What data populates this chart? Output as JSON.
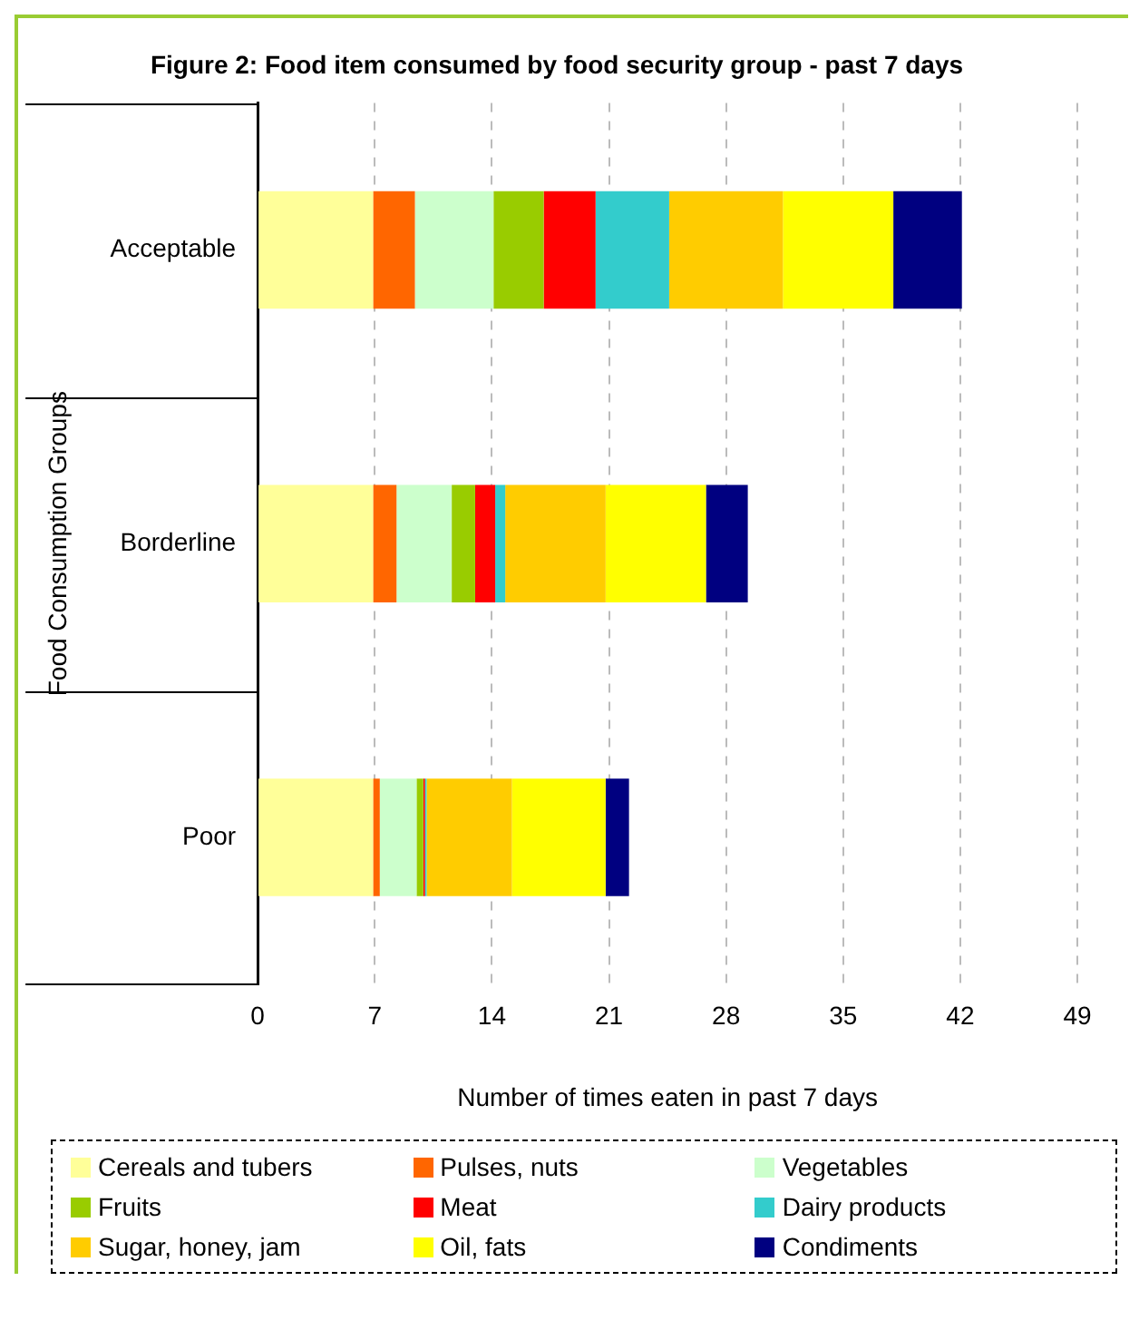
{
  "chart_data": {
    "type": "bar",
    "orientation": "horizontal",
    "stacked": true,
    "title": "Figure 2: Food item consumed by food security group - past 7 days",
    "xlabel": "Number of times eaten in past 7 days",
    "ylabel": "Food Consumption Groups",
    "categories": [
      "Acceptable",
      "Borderline",
      "Poor"
    ],
    "xlim": [
      0,
      49
    ],
    "xticks": [
      0,
      7,
      14,
      21,
      28,
      35,
      42,
      49
    ],
    "grid": "x",
    "legend": "bottom",
    "series": [
      {
        "name": "Cereals and tubers",
        "color": "#ffff99",
        "values": [
          6.9,
          6.9,
          6.9
        ]
      },
      {
        "name": "Pulses, nuts",
        "color": "#ff6600",
        "values": [
          2.5,
          1.4,
          0.4
        ]
      },
      {
        "name": "Vegetables",
        "color": "#ccffcc",
        "values": [
          4.7,
          3.3,
          2.2
        ]
      },
      {
        "name": "Fruits",
        "color": "#99cc00",
        "values": [
          3.0,
          1.4,
          0.4
        ]
      },
      {
        "name": "Meat",
        "color": "#ff0000",
        "values": [
          3.1,
          1.2,
          0.1
        ]
      },
      {
        "name": "Dairy products",
        "color": "#33cccc",
        "values": [
          4.4,
          0.6,
          0.1
        ]
      },
      {
        "name": "Sugar, honey, jam",
        "color": "#ffcc00",
        "values": [
          6.8,
          6.0,
          5.1
        ]
      },
      {
        "name": "Oil, fats",
        "color": "#ffff00",
        "values": [
          6.6,
          6.0,
          5.6
        ]
      },
      {
        "name": "Condiments",
        "color": "#000080",
        "values": [
          4.1,
          2.5,
          1.4
        ]
      }
    ]
  }
}
